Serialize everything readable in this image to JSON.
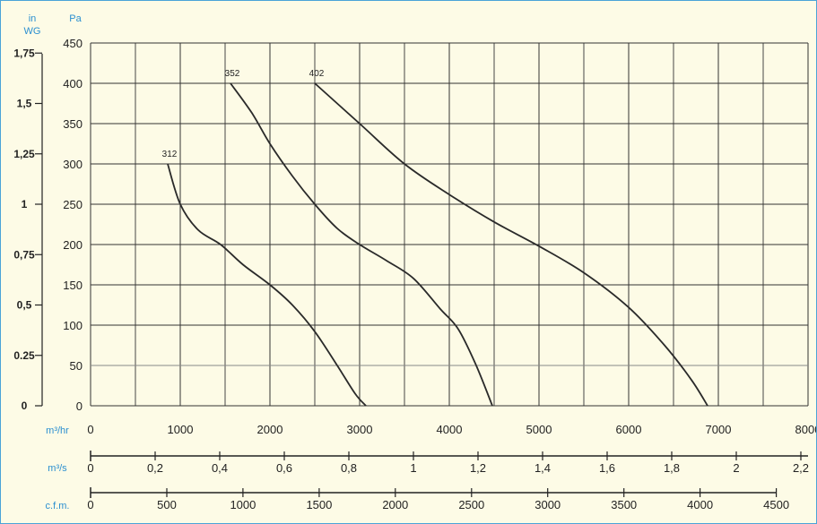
{
  "chart_data": {
    "type": "line",
    "units": {
      "wg_top": "in",
      "wg_bottom": "WG",
      "pa": "Pa",
      "flow_m3hr": "m³/hr",
      "flow_m3s": "m³/s",
      "flow_cfm": "c.f.m."
    },
    "y_pa_ticks": [
      "450",
      "400",
      "350",
      "300",
      "250",
      "200",
      "150",
      "100",
      "50",
      "0"
    ],
    "y_wg_ticks": [
      {
        "label": "1,75",
        "value": 437.5
      },
      {
        "label": "1,5",
        "value": 375
      },
      {
        "label": "1,25",
        "value": 312.5
      },
      {
        "label": "1",
        "value": 250
      },
      {
        "label": "0,75",
        "value": 187.5
      },
      {
        "label": "0,5",
        "value": 125
      },
      {
        "label": "0.25",
        "value": 62.5
      },
      {
        "label": "0",
        "value": 0
      }
    ],
    "x_m3hr_ticks": [
      "0",
      "1000",
      "2000",
      "3000",
      "4000",
      "5000",
      "6000",
      "7000",
      "8000"
    ],
    "x_m3s_ticks": [
      {
        "label": "0",
        "value": 0
      },
      {
        "label": "0,2",
        "value": 720
      },
      {
        "label": "0,4",
        "value": 1440
      },
      {
        "label": "0,6",
        "value": 2160
      },
      {
        "label": "0,8",
        "value": 2880
      },
      {
        "label": "1",
        "value": 3600
      },
      {
        "label": "1,2",
        "value": 4320
      },
      {
        "label": "1,4",
        "value": 5040
      },
      {
        "label": "1,6",
        "value": 5760
      },
      {
        "label": "1,8",
        "value": 6480
      },
      {
        "label": "2",
        "value": 7200
      },
      {
        "label": "2,2",
        "value": 7920
      }
    ],
    "x_cfm_ticks": [
      {
        "label": "0",
        "value": 0
      },
      {
        "label": "500",
        "value": 850
      },
      {
        "label": "1000",
        "value": 1699
      },
      {
        "label": "1500",
        "value": 2549
      },
      {
        "label": "2000",
        "value": 3398
      },
      {
        "label": "2500",
        "value": 4248
      },
      {
        "label": "3000",
        "value": 5097
      },
      {
        "label": "3500",
        "value": 5947
      },
      {
        "label": "4000",
        "value": 6796
      },
      {
        "label": "4500",
        "value": 7646
      }
    ],
    "xlim": [
      0,
      8000
    ],
    "ylim": [
      0,
      450
    ],
    "grid": true,
    "series": [
      {
        "name": "312",
        "points": [
          [
            860,
            300
          ],
          [
            1000,
            250
          ],
          [
            1200,
            218
          ],
          [
            1450,
            200
          ],
          [
            1700,
            175
          ],
          [
            2000,
            150
          ],
          [
            2250,
            125
          ],
          [
            2500,
            92
          ],
          [
            2750,
            50
          ],
          [
            2950,
            15
          ],
          [
            3070,
            0
          ]
        ]
      },
      {
        "name": "352",
        "points": [
          [
            1560,
            400
          ],
          [
            1800,
            363
          ],
          [
            2000,
            325
          ],
          [
            2250,
            285
          ],
          [
            2500,
            250
          ],
          [
            2750,
            220
          ],
          [
            3000,
            200
          ],
          [
            3300,
            180
          ],
          [
            3600,
            158
          ],
          [
            3900,
            120
          ],
          [
            4100,
            95
          ],
          [
            4300,
            50
          ],
          [
            4480,
            0
          ]
        ]
      },
      {
        "name": "402",
        "points": [
          [
            2500,
            400
          ],
          [
            3000,
            350
          ],
          [
            3500,
            300
          ],
          [
            4000,
            262
          ],
          [
            4500,
            228
          ],
          [
            5000,
            198
          ],
          [
            5500,
            165
          ],
          [
            6000,
            122
          ],
          [
            6400,
            75
          ],
          [
            6700,
            32
          ],
          [
            6880,
            0
          ]
        ]
      }
    ]
  }
}
